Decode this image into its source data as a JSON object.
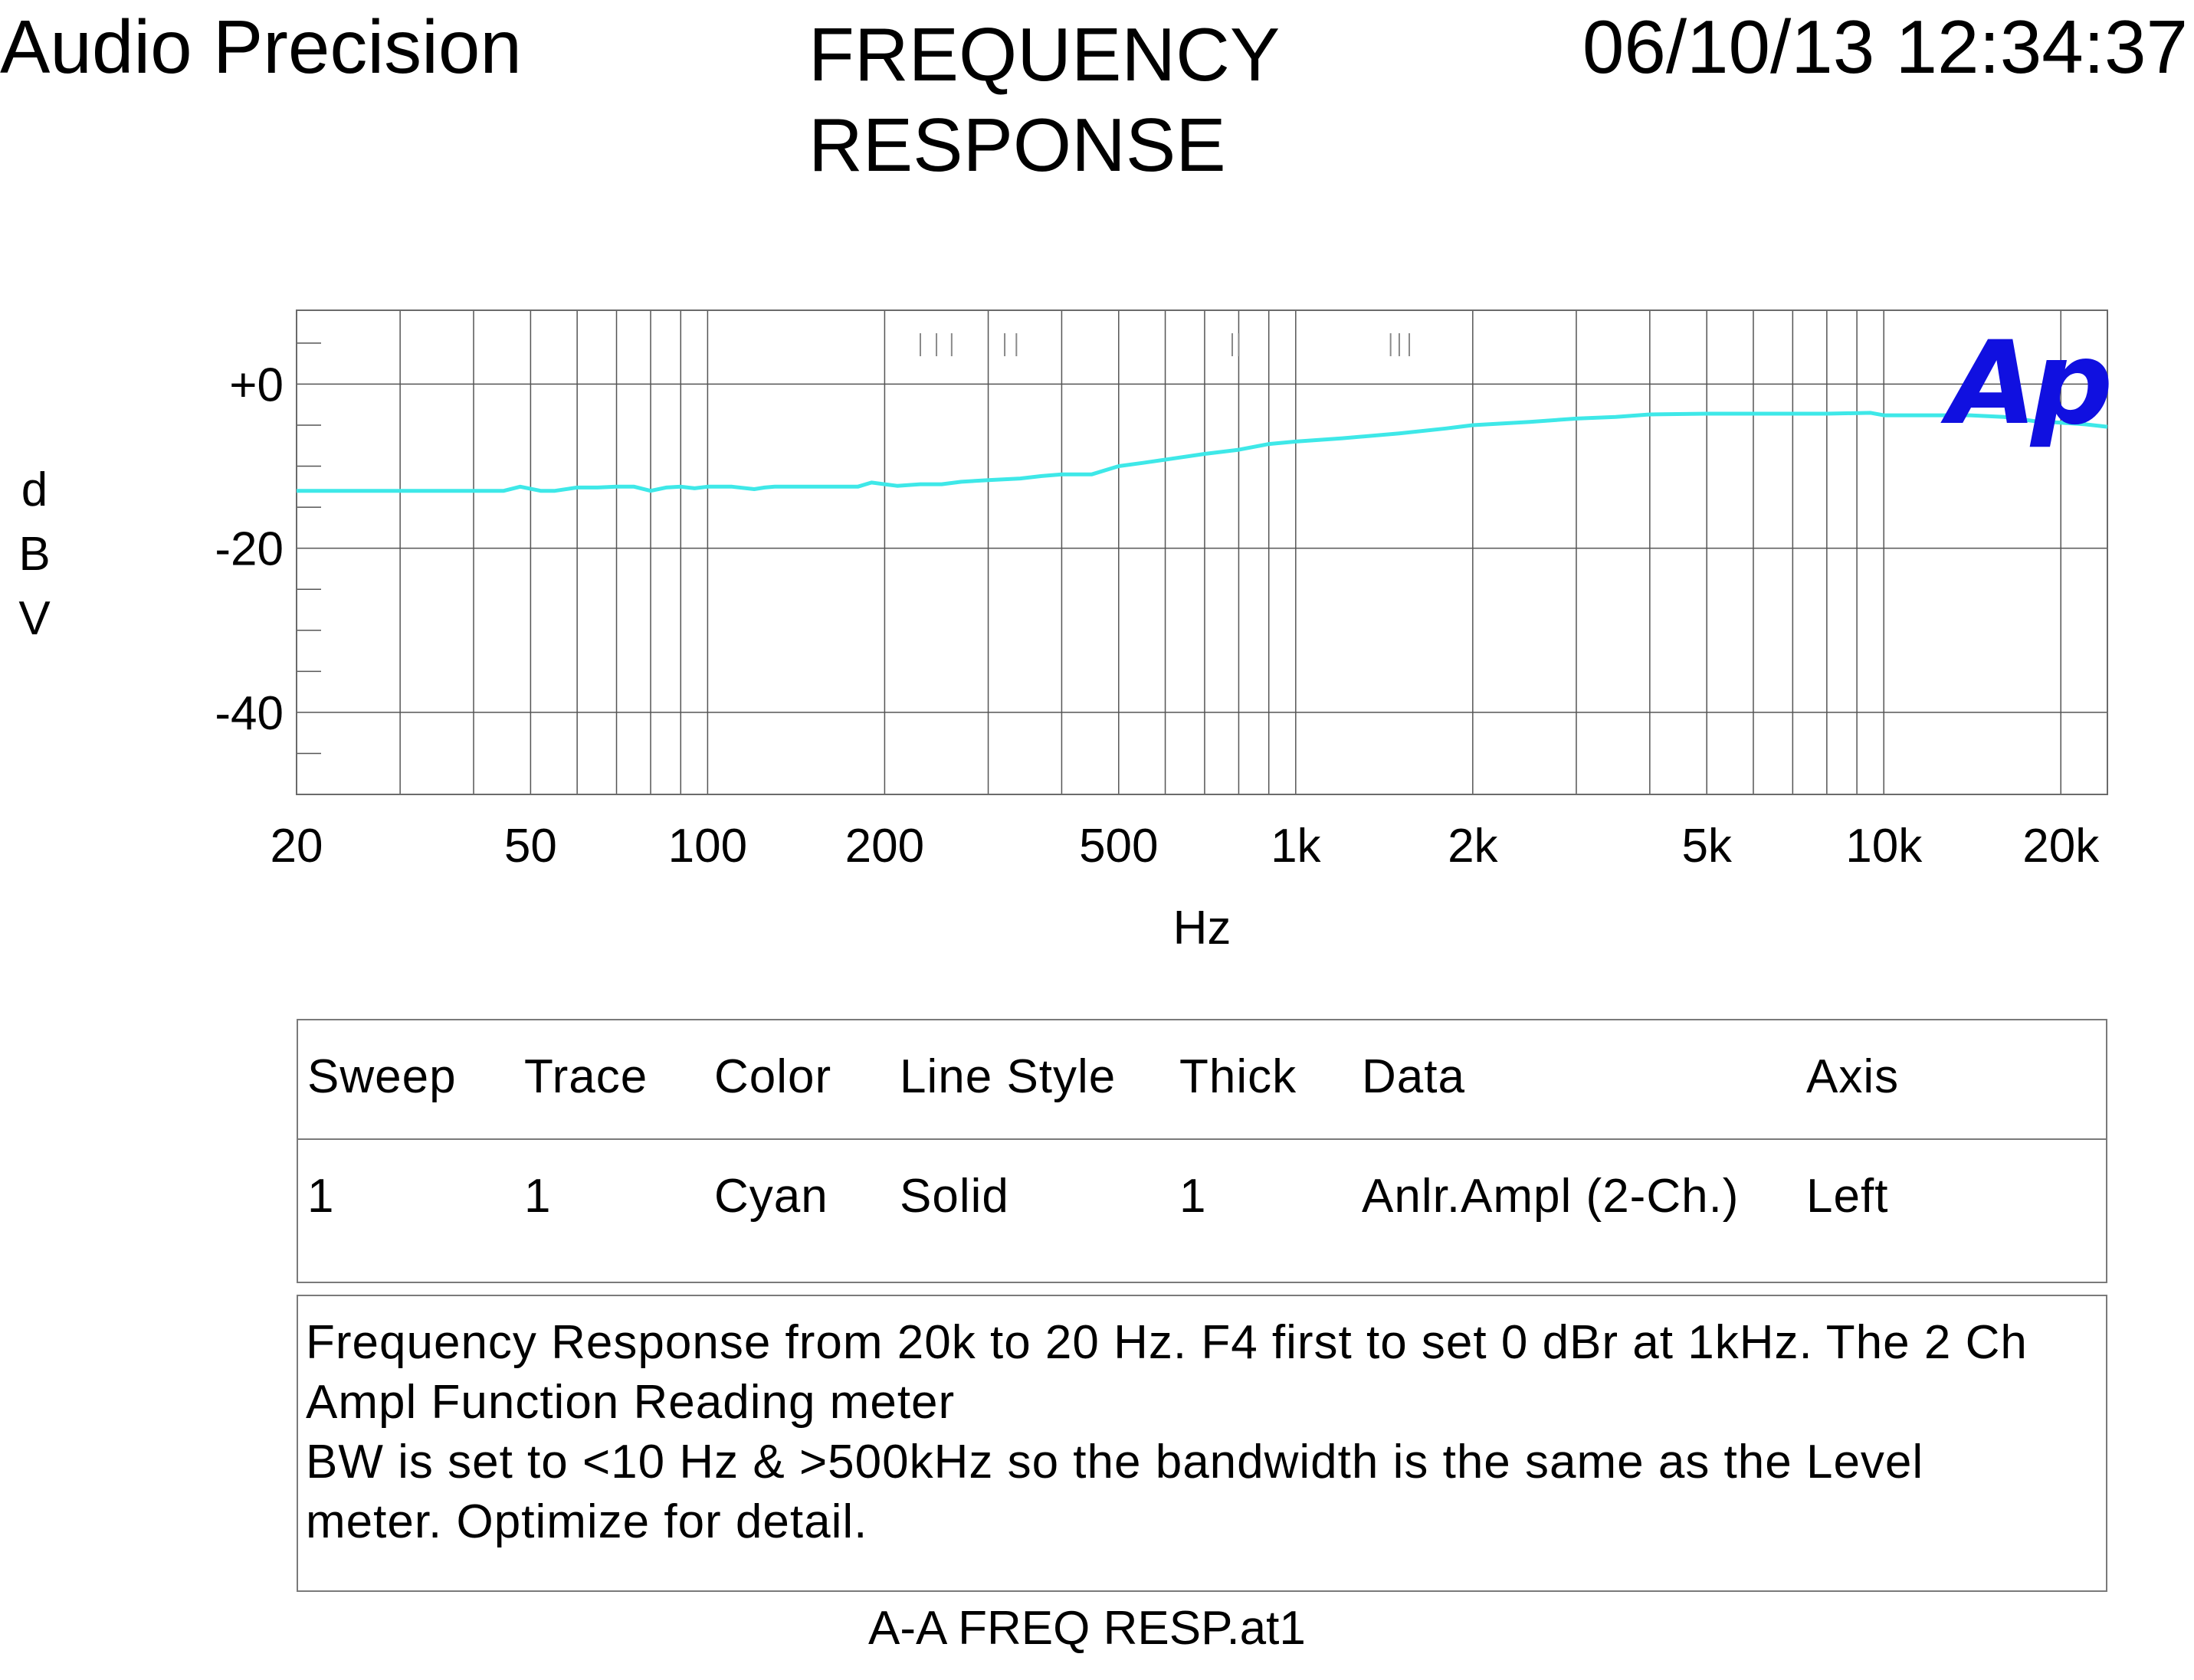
{
  "header": {
    "brand": "Audio Precision",
    "title_line1": "FREQUENCY",
    "title_line2": "RESPONSE",
    "datetime": "06/10/13 12:34:37"
  },
  "chart_data": {
    "type": "line",
    "xscale": "log",
    "xlabel": "Hz",
    "ylabel": "dBV",
    "xlim": [
      20,
      24000
    ],
    "ylim": [
      -50,
      9
    ],
    "x_ticks": [
      {
        "v": 20,
        "label": "20"
      },
      {
        "v": 50,
        "label": "50"
      },
      {
        "v": 100,
        "label": "100"
      },
      {
        "v": 200,
        "label": "200"
      },
      {
        "v": 500,
        "label": "500"
      },
      {
        "v": 1000,
        "label": "1k"
      },
      {
        "v": 2000,
        "label": "2k"
      },
      {
        "v": 5000,
        "label": "5k"
      },
      {
        "v": 10000,
        "label": "10k"
      },
      {
        "v": 20000,
        "label": "20k"
      }
    ],
    "y_ticks": [
      {
        "v": 0,
        "label": "+0"
      },
      {
        "v": -20,
        "label": "-20"
      },
      {
        "v": -40,
        "label": "-40"
      }
    ],
    "grid": true,
    "logo": "Ap",
    "logo_color": "#1010e0",
    "series": [
      {
        "color": "#3ee8e8",
        "x": [
          20,
          30,
          45,
          48,
          52,
          55,
          60,
          65,
          70,
          75,
          80,
          85,
          90,
          95,
          100,
          110,
          120,
          125,
          130,
          150,
          180,
          190,
          200,
          210,
          230,
          250,
          270,
          300,
          340,
          370,
          400,
          450,
          500,
          550,
          600,
          700,
          800,
          900,
          1000,
          1200,
          1500,
          1800,
          2000,
          2500,
          3000,
          3500,
          4000,
          5000,
          6000,
          8000,
          9500,
          10000,
          12000,
          14000,
          16000,
          18000,
          20000,
          22000,
          24000
        ],
        "values": [
          -13,
          -13,
          -13,
          -12.5,
          -13,
          -13,
          -12.6,
          -12.6,
          -12.5,
          -12.5,
          -13,
          -12.6,
          -12.5,
          -12.7,
          -12.5,
          -12.5,
          -12.8,
          -12.6,
          -12.5,
          -12.5,
          -12.5,
          -12,
          -12.2,
          -12.4,
          -12.2,
          -12.2,
          -11.9,
          -11.7,
          -11.5,
          -11.2,
          -11,
          -11,
          -10,
          -9.6,
          -9.2,
          -8.5,
          -8,
          -7.3,
          -7,
          -6.6,
          -6,
          -5.4,
          -5,
          -4.6,
          -4.2,
          -4,
          -3.7,
          -3.6,
          -3.6,
          -3.6,
          -3.5,
          -3.8,
          -3.8,
          -3.8,
          -4,
          -4.5,
          -4.7,
          -4.9,
          -5.2
        ]
      }
    ]
  },
  "table": {
    "headers": [
      "Sweep",
      "Trace",
      "Color",
      "Line Style",
      "Thick",
      "Data",
      "Axis"
    ],
    "rows": [
      [
        "1",
        "1",
        "Cyan",
        "Solid",
        "1",
        "Anlr.Ampl (2-Ch.)",
        "Left"
      ]
    ]
  },
  "notes": [
    "Frequency Response from 20k to 20 Hz.  F4 first to set 0 dBr at 1kHz.  The 2 Ch",
    "Ampl Function Reading meter",
    "BW is set to <10 Hz & >500kHz so the bandwidth is the same as the Level",
    "meter.  Optimize for detail."
  ],
  "filename": "A-A FREQ RESP.at1"
}
